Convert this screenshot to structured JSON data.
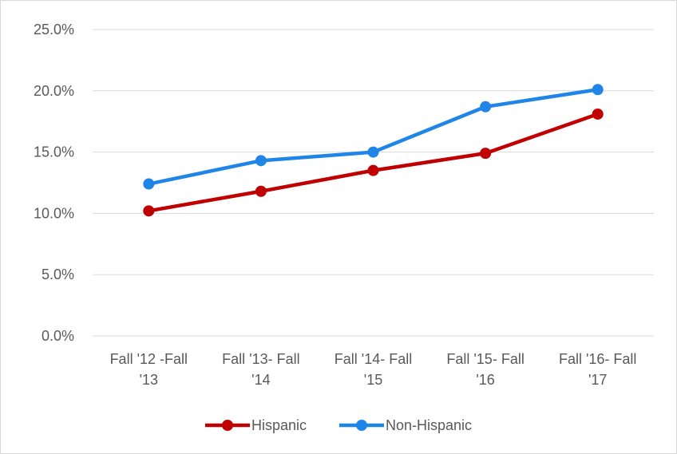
{
  "chart_data": {
    "type": "line",
    "title": "",
    "xlabel": "",
    "ylabel": "",
    "categories": [
      [
        "Fall '12 -Fall",
        "'13"
      ],
      [
        "Fall '13- Fall",
        "'14"
      ],
      [
        "Fall '14- Fall",
        "'15"
      ],
      [
        "Fall '15- Fall",
        "'16"
      ],
      [
        "Fall '16- Fall",
        "'17"
      ]
    ],
    "y_ticks": [
      "0.0%",
      "5.0%",
      "10.0%",
      "15.0%",
      "20.0%",
      "25.0%"
    ],
    "ylim": [
      0,
      25
    ],
    "y_unit": "percent",
    "grid": true,
    "legend_position": "bottom",
    "series": [
      {
        "name": "Hispanic",
        "color": "#C00000",
        "values": [
          10.2,
          11.8,
          13.5,
          14.9,
          18.1
        ]
      },
      {
        "name": "Non-Hispanic",
        "color": "#1F86E8",
        "values": [
          12.4,
          14.3,
          15.0,
          18.7,
          20.1
        ]
      }
    ]
  }
}
